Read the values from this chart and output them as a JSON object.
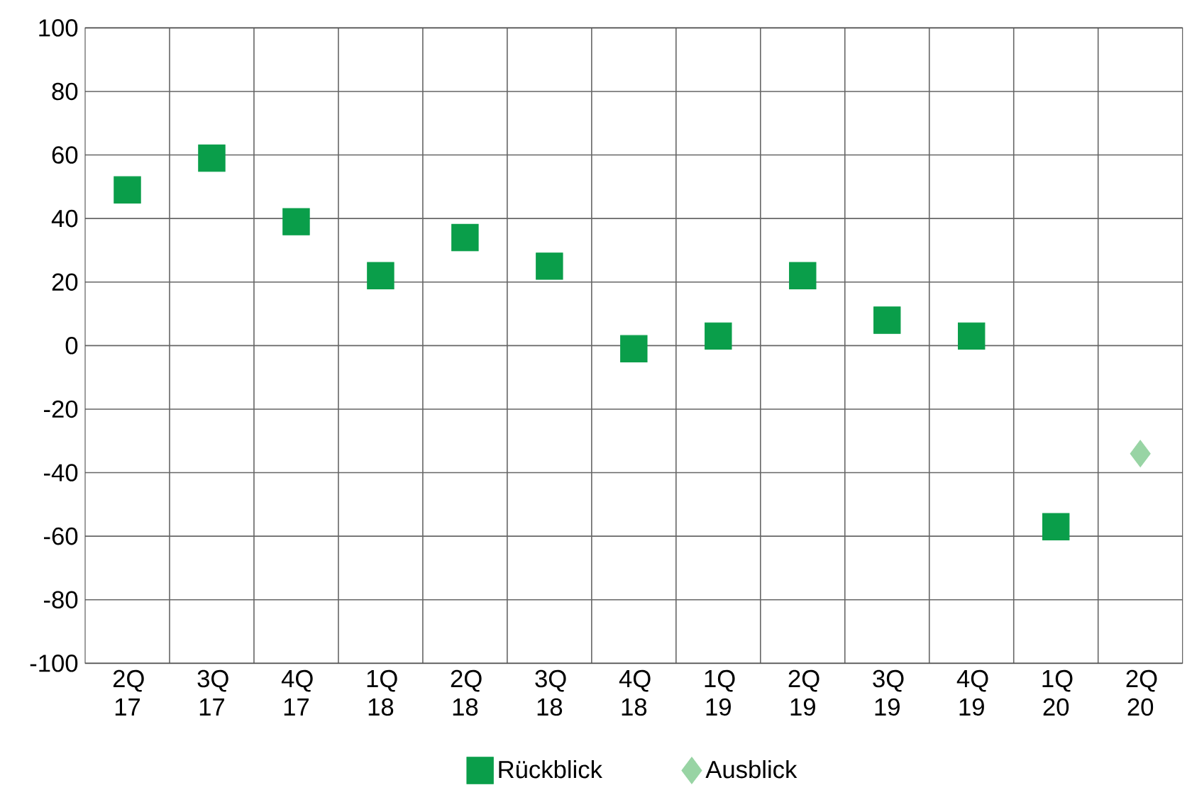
{
  "chart_data": {
    "type": "scatter",
    "categories": [
      "2Q 17",
      "3Q 17",
      "4Q 17",
      "1Q 18",
      "2Q 18",
      "3Q 18",
      "4Q 18",
      "1Q 19",
      "2Q 19",
      "3Q 19",
      "4Q 19",
      "1Q 20",
      "2Q 20"
    ],
    "series": [
      {
        "name": "Rückblick",
        "color": "#0a9e4a",
        "marker": "square",
        "values": [
          49,
          59,
          39,
          22,
          34,
          25,
          -1,
          3,
          22,
          8,
          3,
          -57,
          null
        ]
      },
      {
        "name": "Ausblick",
        "color": "#98d4a4",
        "marker": "diamond",
        "values": [
          null,
          null,
          null,
          null,
          null,
          null,
          null,
          null,
          null,
          null,
          null,
          null,
          -34
        ]
      }
    ],
    "ylim": [
      -100,
      100
    ],
    "yticks": [
      -100,
      -80,
      -60,
      -40,
      -20,
      0,
      20,
      40,
      60,
      80,
      100
    ],
    "grid": true,
    "legend": "bottom"
  }
}
